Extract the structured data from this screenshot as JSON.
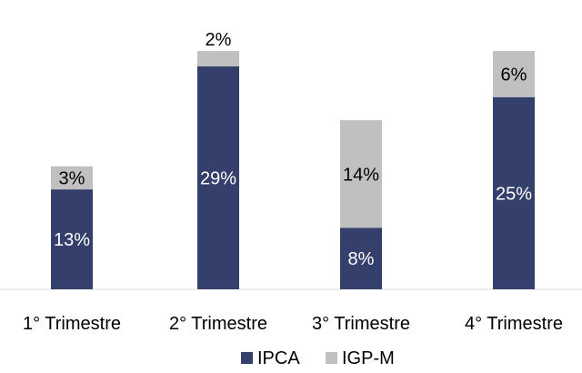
{
  "chart_data": {
    "type": "bar",
    "stacked": true,
    "categories": [
      "1° Trimestre",
      "2° Trimestre",
      "3° Trimestre",
      "4° Trimestre"
    ],
    "series": [
      {
        "name": "IPCA",
        "values": [
          13,
          29,
          8,
          25
        ],
        "labels": [
          "13%",
          "29%",
          "8%",
          "25%"
        ],
        "color": "#343F6B"
      },
      {
        "name": "IGP-M",
        "values": [
          3,
          2,
          14,
          6
        ],
        "labels": [
          "3%",
          "2%",
          "14%",
          "6%"
        ],
        "color": "#C0C0C0"
      }
    ],
    "ylim": [
      0,
      33
    ],
    "grid": false,
    "legend_position": "bottom"
  }
}
